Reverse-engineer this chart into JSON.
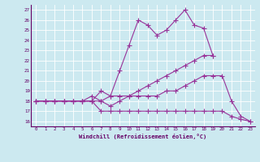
{
  "xlabel": "Windchill (Refroidissement éolien,°C)",
  "xlim": [
    -0.5,
    23.5
  ],
  "ylim": [
    15.5,
    27.5
  ],
  "yticks": [
    16,
    17,
    18,
    19,
    20,
    21,
    22,
    23,
    24,
    25,
    26,
    27
  ],
  "xticks": [
    0,
    1,
    2,
    3,
    4,
    5,
    6,
    7,
    8,
    9,
    10,
    11,
    12,
    13,
    14,
    15,
    16,
    17,
    18,
    19,
    20,
    21,
    22,
    23
  ],
  "background_color": "#cce9f0",
  "grid_color": "#ffffff",
  "line_color": "#993399",
  "line_width": 0.8,
  "marker": "+",
  "marker_size": 4,
  "series": {
    "line1": [
      18.0,
      18.0,
      18.0,
      18.0,
      18.0,
      18.0,
      18.0,
      19.0,
      18.5,
      21.0,
      23.5,
      26.0,
      25.5,
      24.5,
      25.0,
      26.0,
      27.0,
      25.5,
      25.2,
      22.5,
      null,
      null,
      null,
      null
    ],
    "line2": [
      18.0,
      18.0,
      18.0,
      18.0,
      18.0,
      18.0,
      18.0,
      18.0,
      18.5,
      18.5,
      18.5,
      19.0,
      19.5,
      20.0,
      20.5,
      21.0,
      21.5,
      22.0,
      22.5,
      22.5,
      null,
      null,
      null,
      null
    ],
    "line3": [
      18.0,
      18.0,
      18.0,
      18.0,
      18.0,
      18.0,
      18.5,
      18.0,
      17.5,
      18.0,
      18.5,
      18.5,
      18.5,
      18.5,
      19.0,
      19.0,
      19.5,
      20.0,
      20.5,
      20.5,
      20.5,
      18.0,
      16.5,
      16.0
    ],
    "line4": [
      18.0,
      18.0,
      18.0,
      18.0,
      18.0,
      18.0,
      18.0,
      17.0,
      17.0,
      17.0,
      17.0,
      17.0,
      17.0,
      17.0,
      17.0,
      17.0,
      17.0,
      17.0,
      17.0,
      17.0,
      17.0,
      16.5,
      16.2,
      16.0
    ]
  }
}
